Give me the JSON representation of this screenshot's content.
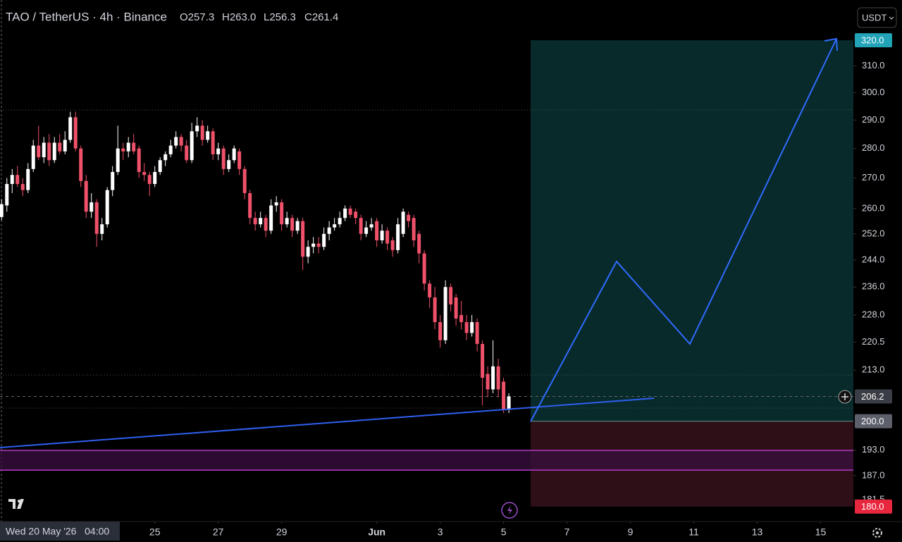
{
  "chart_data": {
    "type": "candlestick",
    "title": "TAO / TetherUS · 4h · Binance",
    "ohlc_readout": [
      "O257.3",
      "H263.0",
      "L256.3",
      "C261.4"
    ],
    "currency": "USDT",
    "log_scale": true,
    "ylim": [
      176.7,
      336.3
    ],
    "yticks": [
      {
        "value": 310,
        "label": "310.0"
      },
      {
        "value": 300,
        "label": "300.0"
      },
      {
        "value": 290,
        "label": "290.0"
      },
      {
        "value": 280,
        "label": "280.0"
      },
      {
        "value": 270,
        "label": "270.0"
      },
      {
        "value": 260,
        "label": "260.0"
      },
      {
        "value": 252,
        "label": "252.0"
      },
      {
        "value": 244,
        "label": "244.0"
      },
      {
        "value": 236,
        "label": "236.0"
      },
      {
        "value": 228,
        "label": "228.0"
      },
      220.5,
      {
        "value": 213,
        "label": "213.0"
      },
      {
        "value": 193,
        "label": "193.0"
      },
      {
        "value": 187,
        "label": "187.0"
      },
      181.5
    ],
    "price_badges": [
      {
        "value": 320,
        "label": "320.0",
        "color": "#22a3b8"
      },
      {
        "value": 206.2,
        "label": "206.2",
        "color": "#3a3d45"
      },
      {
        "value": 200,
        "label": "200.0",
        "color": "#5d606b"
      },
      {
        "value": 180,
        "label": "180.0",
        "color": "#e8273f"
      }
    ],
    "xlim": [
      -0.3,
      161.2
    ],
    "xticks": [
      {
        "value": 29,
        "label": "25"
      },
      {
        "value": 41,
        "label": "27"
      },
      {
        "value": 53,
        "label": "29"
      },
      {
        "value": 71,
        "label": "Jun"
      },
      {
        "value": 83,
        "label": "3"
      },
      {
        "value": 95,
        "label": "5"
      },
      {
        "value": 107,
        "label": "7"
      },
      {
        "value": 119,
        "label": "9"
      },
      {
        "value": 131,
        "label": "11"
      },
      {
        "value": 143,
        "label": "13"
      },
      {
        "value": 155,
        "label": "15"
      }
    ],
    "crosshair_label": "Wed 20 May '26   04:00",
    "up_color": "#ffffff",
    "down_color": "#f0516a",
    "candles": [
      [
        257.3,
        263.0,
        256.3,
        261.4
      ],
      [
        261,
        270,
        259,
        268
      ],
      [
        268,
        273,
        265,
        271
      ],
      [
        271,
        274,
        267,
        268
      ],
      [
        268,
        270,
        264,
        266
      ],
      [
        266,
        275,
        265,
        273
      ],
      [
        273,
        283,
        272,
        281
      ],
      [
        281,
        288,
        276,
        277
      ],
      [
        277,
        284,
        275,
        282
      ],
      [
        282,
        285,
        274,
        276
      ],
      [
        276,
        284,
        275,
        282
      ],
      [
        282,
        285,
        278,
        279
      ],
      [
        279,
        286,
        278,
        283
      ],
      [
        283,
        293,
        282,
        291
      ],
      [
        291,
        293,
        279,
        280
      ],
      [
        280,
        281,
        267,
        269
      ],
      [
        269,
        271,
        257,
        259
      ],
      [
        259,
        265,
        257,
        262
      ],
      [
        262,
        263,
        248,
        252
      ],
      [
        252,
        257,
        250,
        255
      ],
      [
        255,
        267,
        254,
        266
      ],
      [
        266,
        274,
        264,
        272
      ],
      [
        272,
        288,
        271,
        280
      ],
      [
        280,
        282,
        276,
        279
      ],
      [
        279,
        284,
        277,
        282
      ],
      [
        282,
        285,
        278,
        279
      ],
      [
        280,
        281,
        270,
        272
      ],
      [
        272,
        275,
        269,
        271
      ],
      [
        271,
        272,
        264,
        268
      ],
      [
        268,
        274,
        267,
        272
      ],
      [
        272,
        277,
        271,
        276
      ],
      [
        276,
        279,
        274,
        278
      ],
      [
        278,
        283,
        277,
        281
      ],
      [
        281,
        286,
        280,
        284
      ],
      [
        284,
        285,
        279,
        281
      ],
      [
        281,
        283,
        275,
        276
      ],
      [
        276,
        289,
        275,
        286
      ],
      [
        286,
        291,
        284,
        288
      ],
      [
        288,
        290,
        281,
        283
      ],
      [
        283,
        288,
        282,
        286
      ],
      [
        286,
        287,
        276,
        278
      ],
      [
        278,
        282,
        276,
        280
      ],
      [
        280,
        281,
        271,
        273
      ],
      [
        273,
        278,
        272,
        276
      ],
      [
        276,
        281,
        275,
        280
      ],
      [
        279,
        280,
        271,
        273
      ],
      [
        273,
        274,
        263,
        265
      ],
      [
        265,
        266,
        255,
        257
      ],
      [
        257,
        259,
        253,
        255
      ],
      [
        255,
        259,
        254,
        257
      ],
      [
        257,
        258,
        251,
        253
      ],
      [
        253,
        263,
        252,
        261
      ],
      [
        261,
        264,
        259,
        262
      ],
      [
        262,
        263,
        253,
        255
      ],
      [
        255,
        259,
        254,
        257
      ],
      [
        257,
        258,
        251,
        253
      ],
      [
        253,
        257,
        252,
        256
      ],
      [
        256,
        257,
        241,
        245
      ],
      [
        245,
        250,
        243,
        248
      ],
      [
        248,
        251,
        246,
        249
      ],
      [
        249,
        251,
        246,
        248
      ],
      [
        248,
        254,
        247,
        252
      ],
      [
        252,
        256,
        250,
        254
      ],
      [
        254,
        257,
        253,
        255
      ],
      [
        255,
        259,
        254,
        257
      ],
      [
        257,
        261,
        256,
        260
      ],
      [
        260,
        261,
        257,
        258
      ],
      [
        259,
        260,
        255,
        257
      ],
      [
        257,
        258,
        250,
        252
      ],
      [
        252,
        256,
        251,
        254
      ],
      [
        254,
        257,
        253,
        255
      ],
      [
        256,
        257,
        248,
        250
      ],
      [
        250,
        255,
        249,
        253
      ],
      [
        253,
        254,
        247,
        249
      ],
      [
        250,
        251,
        245,
        247
      ],
      [
        247,
        257,
        246,
        255
      ],
      [
        252,
        260,
        251,
        259
      ],
      [
        258,
        259,
        254,
        256
      ],
      [
        257,
        258,
        248,
        250
      ],
      [
        252,
        253,
        243,
        246
      ],
      [
        246,
        247,
        235,
        237
      ],
      [
        237,
        238,
        230,
        233
      ],
      [
        233,
        236,
        224,
        226
      ],
      [
        226,
        228,
        219,
        221
      ],
      [
        221,
        238,
        220,
        236
      ],
      [
        236,
        237,
        229,
        231
      ],
      [
        233,
        234,
        225,
        227
      ],
      [
        228,
        232,
        224,
        226
      ],
      [
        226,
        228,
        221,
        223
      ],
      [
        223,
        228,
        222,
        226
      ],
      [
        226,
        227,
        218,
        220
      ],
      [
        220,
        221,
        204,
        211
      ],
      [
        212,
        214,
        206,
        208
      ],
      [
        208,
        221,
        207,
        214
      ],
      [
        214,
        216,
        206,
        208
      ],
      [
        210,
        211,
        202,
        202.8
      ],
      [
        202.8,
        207,
        202,
        206.2
      ]
    ]
  }
}
